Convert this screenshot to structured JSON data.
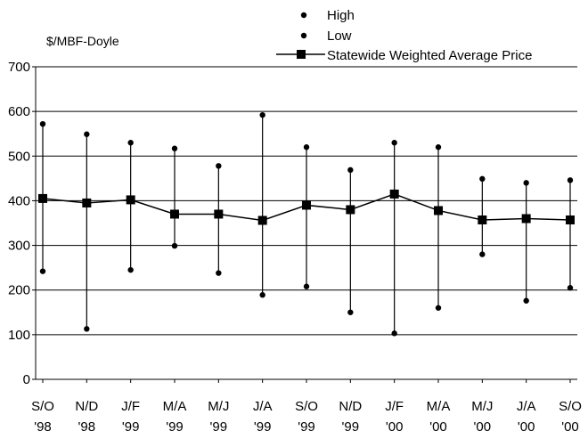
{
  "chart_data": {
    "type": "line",
    "ylabel": "$/MBF-Doyle",
    "ylim": [
      0,
      700
    ],
    "yticks": [
      0,
      100,
      200,
      300,
      400,
      500,
      600,
      700
    ],
    "grid": true,
    "legend_position": "top-right",
    "categories": [
      [
        "S/O",
        "'98"
      ],
      [
        "N/D",
        "'98"
      ],
      [
        "J/F",
        "'99"
      ],
      [
        "M/A",
        "'99"
      ],
      [
        "M/J",
        "'99"
      ],
      [
        "J/A",
        "'99"
      ],
      [
        "S/O",
        "'99"
      ],
      [
        "N/D",
        "'99"
      ],
      [
        "J/F",
        "'00"
      ],
      [
        "M/A",
        "'00"
      ],
      [
        "M/J",
        "'00"
      ],
      [
        "J/A",
        "'00"
      ],
      [
        "S/O",
        "'00"
      ]
    ],
    "series": [
      {
        "name": "High",
        "marker": "dot",
        "values": [
          572,
          549,
          530,
          517,
          478,
          592,
          520,
          469,
          530,
          520,
          449,
          440,
          446
        ]
      },
      {
        "name": "Low",
        "marker": "dot",
        "values": [
          242,
          113,
          245,
          299,
          238,
          189,
          208,
          150,
          103,
          160,
          280,
          176,
          205
        ]
      },
      {
        "name": "Statewide Weighted Average Price",
        "marker": "square-line",
        "values": [
          405,
          395,
          402,
          370,
          370,
          356,
          390,
          380,
          415,
          378,
          357,
          360,
          357
        ]
      }
    ]
  }
}
